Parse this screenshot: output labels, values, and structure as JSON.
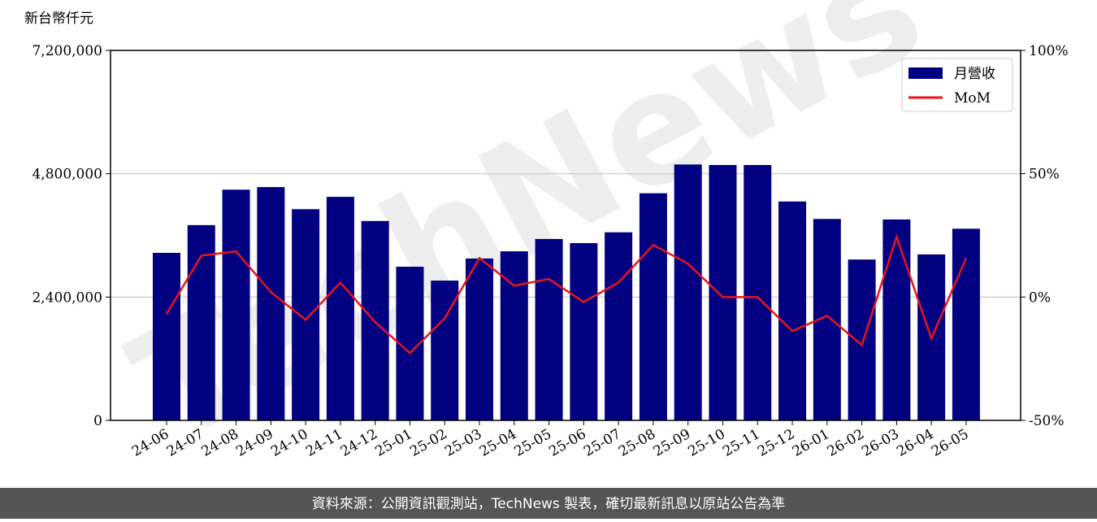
{
  "chart_data": {
    "type": "bar-line",
    "y_label": "新台幣仟元",
    "watermark": "TechNews",
    "footer": "資料來源：公開資訊觀測站，TechNews 製表，確切最新訊息以原站公告為準",
    "categories": [
      "24-06",
      "24-07",
      "24-08",
      "24-09",
      "24-10",
      "24-11",
      "24-12",
      "25-01",
      "25-02",
      "25-03",
      "25-04",
      "25-05",
      "25-06",
      "25-07",
      "25-08",
      "25-09",
      "25-10",
      "25-11",
      "25-12",
      "26-01",
      "26-02",
      "26-03",
      "26-04",
      "26-05"
    ],
    "series": [
      {
        "name": "月營收",
        "color": "#000080",
        "type": "bar",
        "values": [
          3260000,
          3800000,
          4490000,
          4540000,
          4110000,
          4350000,
          3880000,
          2990000,
          2720000,
          3150000,
          3290000,
          3530000,
          3450000,
          3660000,
          4420000,
          4980000,
          4970000,
          4970000,
          4260000,
          3920000,
          3130000,
          3910000,
          3230000,
          3730000
        ]
      },
      {
        "name": "MoM",
        "color": "#e8141e",
        "type": "line",
        "axis": "y2",
        "values": [
          -6.9,
          16.8,
          18.5,
          2.0,
          -9.2,
          5.9,
          -10.2,
          -22.7,
          -8.6,
          15.8,
          4.6,
          7.3,
          -2.0,
          5.9,
          21.1,
          13.5,
          0,
          0,
          -13.8,
          -7.6,
          -19.5,
          24.4,
          -16.8,
          15.8
        ]
      }
    ],
    "ylim": [
      0,
      7200000
    ],
    "yticks": [
      0,
      {
        "value": 2400000,
        "label": "2,400,000"
      },
      {
        "value": 4800000,
        "label": "4,800,000"
      },
      {
        "value": 7200000,
        "label": "7,200,000"
      }
    ],
    "y2lim": [
      -50,
      100
    ],
    "y2ticks": [
      {
        "value": -50,
        "label": "-50%"
      },
      {
        "value": 0,
        "label": "0%"
      },
      {
        "value": 50,
        "label": "50%"
      },
      {
        "value": 100,
        "label": "100%"
      }
    ],
    "grid": true,
    "legend": "upper right"
  }
}
